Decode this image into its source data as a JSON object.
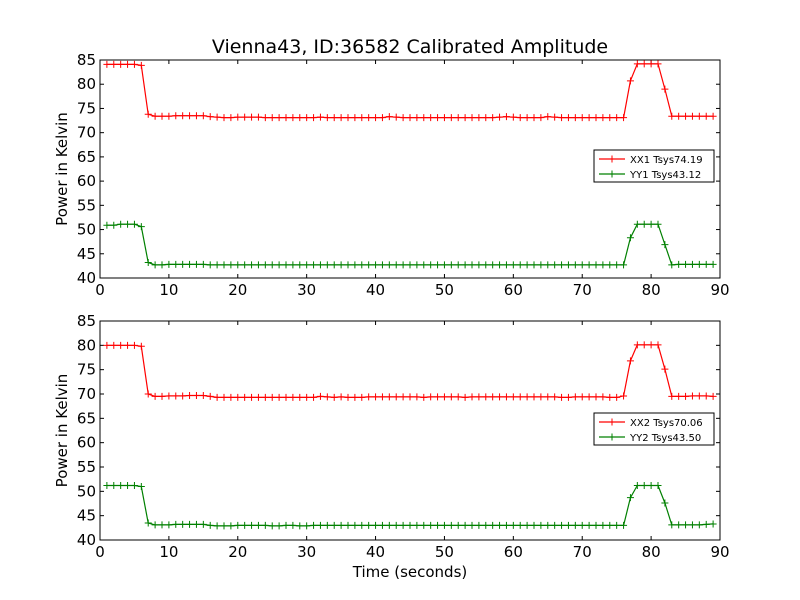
{
  "figure": {
    "title": "Vienna43, ID:36582 Calibrated Amplitude"
  },
  "chart_data": [
    {
      "type": "line",
      "xlabel": "",
      "ylabel": "Power in Kelvin",
      "xlim": [
        0,
        90
      ],
      "ylim": [
        40,
        85
      ],
      "xticks": [
        0,
        10,
        20,
        30,
        40,
        50,
        60,
        70,
        80,
        90
      ],
      "yticks": [
        40,
        45,
        50,
        55,
        60,
        65,
        70,
        75,
        80,
        85
      ],
      "grid": false,
      "legend_position": "center-right",
      "series": [
        {
          "name": "XX1 Tsys74.19",
          "color": "#ff0000",
          "x": [
            1,
            2,
            3,
            4,
            5,
            6,
            7,
            8,
            9,
            10,
            11,
            12,
            13,
            14,
            15,
            16,
            17,
            18,
            19,
            20,
            21,
            22,
            23,
            24,
            25,
            26,
            27,
            28,
            29,
            30,
            31,
            32,
            33,
            34,
            35,
            36,
            37,
            38,
            39,
            40,
            41,
            42,
            43,
            44,
            45,
            46,
            47,
            48,
            49,
            50,
            51,
            52,
            53,
            54,
            55,
            56,
            57,
            58,
            59,
            60,
            61,
            62,
            63,
            64,
            65,
            66,
            67,
            68,
            69,
            70,
            71,
            72,
            73,
            74,
            75,
            76,
            77,
            78,
            79,
            80,
            81,
            82,
            83,
            84,
            85,
            86,
            87,
            88,
            89
          ],
          "y": [
            84.1,
            84.1,
            84.1,
            84.1,
            84.1,
            83.9,
            73.8,
            73.4,
            73.4,
            73.4,
            73.5,
            73.5,
            73.5,
            73.5,
            73.5,
            73.3,
            73.2,
            73.1,
            73.1,
            73.2,
            73.2,
            73.2,
            73.2,
            73.1,
            73.1,
            73.1,
            73.1,
            73.1,
            73.1,
            73.1,
            73.1,
            73.2,
            73.1,
            73.1,
            73.1,
            73.1,
            73.1,
            73.1,
            73.1,
            73.1,
            73.1,
            73.3,
            73.2,
            73.1,
            73.1,
            73.1,
            73.1,
            73.1,
            73.1,
            73.1,
            73.1,
            73.1,
            73.1,
            73.1,
            73.1,
            73.1,
            73.1,
            73.2,
            73.3,
            73.2,
            73.1,
            73.1,
            73.1,
            73.1,
            73.3,
            73.2,
            73.1,
            73.1,
            73.1,
            73.1,
            73.1,
            73.1,
            73.1,
            73.1,
            73.1,
            73.1,
            80.7,
            84.2,
            84.2,
            84.2,
            84.2,
            79.0,
            73.4,
            73.4,
            73.4,
            73.4,
            73.4,
            73.4,
            73.4
          ]
        },
        {
          "name": "YY1 Tsys43.12",
          "color": "#008000",
          "x": [
            1,
            2,
            3,
            4,
            5,
            6,
            7,
            8,
            9,
            10,
            11,
            12,
            13,
            14,
            15,
            16,
            17,
            18,
            19,
            20,
            21,
            22,
            23,
            24,
            25,
            26,
            27,
            28,
            29,
            30,
            31,
            32,
            33,
            34,
            35,
            36,
            37,
            38,
            39,
            40,
            41,
            42,
            43,
            44,
            45,
            46,
            47,
            48,
            49,
            50,
            51,
            52,
            53,
            54,
            55,
            56,
            57,
            58,
            59,
            60,
            61,
            62,
            63,
            64,
            65,
            66,
            67,
            68,
            69,
            70,
            71,
            72,
            73,
            74,
            75,
            76,
            77,
            78,
            79,
            80,
            81,
            82,
            83,
            84,
            85,
            86,
            87,
            88,
            89
          ],
          "y": [
            50.9,
            50.9,
            51.1,
            51.1,
            51.1,
            50.6,
            43.2,
            42.7,
            42.7,
            42.8,
            42.8,
            42.8,
            42.8,
            42.8,
            42.8,
            42.7,
            42.7,
            42.7,
            42.7,
            42.7,
            42.7,
            42.7,
            42.7,
            42.7,
            42.7,
            42.7,
            42.7,
            42.7,
            42.7,
            42.7,
            42.7,
            42.7,
            42.7,
            42.7,
            42.7,
            42.7,
            42.7,
            42.7,
            42.7,
            42.7,
            42.7,
            42.7,
            42.7,
            42.7,
            42.7,
            42.7,
            42.7,
            42.7,
            42.7,
            42.7,
            42.7,
            42.7,
            42.7,
            42.7,
            42.7,
            42.7,
            42.7,
            42.7,
            42.7,
            42.7,
            42.7,
            42.7,
            42.7,
            42.7,
            42.7,
            42.7,
            42.7,
            42.7,
            42.7,
            42.7,
            42.7,
            42.7,
            42.7,
            42.7,
            42.7,
            42.7,
            48.3,
            51.1,
            51.1,
            51.1,
            51.1,
            46.9,
            42.7,
            42.8,
            42.8,
            42.8,
            42.8,
            42.8,
            42.8
          ]
        }
      ]
    },
    {
      "type": "line",
      "xlabel": "Time (seconds)",
      "ylabel": "Power in Kelvin",
      "xlim": [
        0,
        90
      ],
      "ylim": [
        40,
        85
      ],
      "xticks": [
        0,
        10,
        20,
        30,
        40,
        50,
        60,
        70,
        80,
        90
      ],
      "yticks": [
        40,
        45,
        50,
        55,
        60,
        65,
        70,
        75,
        80,
        85
      ],
      "grid": false,
      "legend_position": "center-right",
      "series": [
        {
          "name": "XX2 Tsys70.06",
          "color": "#ff0000",
          "x": [
            1,
            2,
            3,
            4,
            5,
            6,
            7,
            8,
            9,
            10,
            11,
            12,
            13,
            14,
            15,
            16,
            17,
            18,
            19,
            20,
            21,
            22,
            23,
            24,
            25,
            26,
            27,
            28,
            29,
            30,
            31,
            32,
            33,
            34,
            35,
            36,
            37,
            38,
            39,
            40,
            41,
            42,
            43,
            44,
            45,
            46,
            47,
            48,
            49,
            50,
            51,
            52,
            53,
            54,
            55,
            56,
            57,
            58,
            59,
            60,
            61,
            62,
            63,
            64,
            65,
            66,
            67,
            68,
            69,
            70,
            71,
            72,
            73,
            74,
            75,
            76,
            77,
            78,
            79,
            80,
            81,
            82,
            83,
            84,
            85,
            86,
            87,
            88,
            89
          ],
          "y": [
            80.0,
            80.0,
            80.0,
            80.0,
            80.0,
            79.8,
            70.0,
            69.5,
            69.5,
            69.6,
            69.6,
            69.6,
            69.7,
            69.7,
            69.7,
            69.5,
            69.3,
            69.3,
            69.3,
            69.3,
            69.3,
            69.3,
            69.3,
            69.3,
            69.3,
            69.3,
            69.3,
            69.3,
            69.3,
            69.3,
            69.3,
            69.5,
            69.4,
            69.3,
            69.4,
            69.3,
            69.3,
            69.3,
            69.4,
            69.4,
            69.4,
            69.4,
            69.4,
            69.4,
            69.4,
            69.4,
            69.3,
            69.4,
            69.4,
            69.4,
            69.4,
            69.4,
            69.3,
            69.4,
            69.4,
            69.4,
            69.4,
            69.4,
            69.4,
            69.4,
            69.4,
            69.4,
            69.4,
            69.4,
            69.4,
            69.4,
            69.3,
            69.3,
            69.4,
            69.4,
            69.4,
            69.4,
            69.4,
            69.3,
            69.3,
            69.6,
            76.8,
            80.1,
            80.1,
            80.1,
            80.1,
            75.1,
            69.5,
            69.5,
            69.5,
            69.6,
            69.6,
            69.6,
            69.5
          ]
        },
        {
          "name": "YY2 Tsys43.50",
          "color": "#008000",
          "x": [
            1,
            2,
            3,
            4,
            5,
            6,
            7,
            8,
            9,
            10,
            11,
            12,
            13,
            14,
            15,
            16,
            17,
            18,
            19,
            20,
            21,
            22,
            23,
            24,
            25,
            26,
            27,
            28,
            29,
            30,
            31,
            32,
            33,
            34,
            35,
            36,
            37,
            38,
            39,
            40,
            41,
            42,
            43,
            44,
            45,
            46,
            47,
            48,
            49,
            50,
            51,
            52,
            53,
            54,
            55,
            56,
            57,
            58,
            59,
            60,
            61,
            62,
            63,
            64,
            65,
            66,
            67,
            68,
            69,
            70,
            71,
            72,
            73,
            74,
            75,
            76,
            77,
            78,
            79,
            80,
            81,
            82,
            83,
            84,
            85,
            86,
            87,
            88,
            89
          ],
          "y": [
            51.2,
            51.2,
            51.2,
            51.2,
            51.2,
            51.0,
            43.5,
            43.1,
            43.1,
            43.1,
            43.2,
            43.2,
            43.2,
            43.2,
            43.2,
            43.0,
            42.9,
            42.9,
            42.9,
            43.0,
            43.0,
            43.0,
            43.0,
            43.0,
            42.9,
            42.9,
            43.0,
            43.0,
            42.9,
            42.9,
            43.0,
            43.0,
            43.0,
            43.0,
            43.0,
            43.0,
            43.0,
            43.0,
            43.0,
            43.0,
            43.0,
            43.0,
            43.0,
            43.0,
            43.0,
            43.0,
            43.0,
            43.0,
            43.0,
            43.0,
            43.0,
            43.0,
            43.0,
            43.0,
            43.0,
            43.0,
            43.0,
            43.0,
            43.0,
            43.0,
            43.0,
            43.0,
            43.0,
            43.0,
            43.0,
            43.0,
            43.0,
            43.0,
            43.0,
            43.0,
            43.0,
            43.0,
            43.0,
            43.0,
            43.0,
            43.0,
            48.7,
            51.2,
            51.2,
            51.2,
            51.2,
            47.6,
            43.1,
            43.1,
            43.1,
            43.1,
            43.1,
            43.2,
            43.3
          ]
        }
      ]
    }
  ]
}
